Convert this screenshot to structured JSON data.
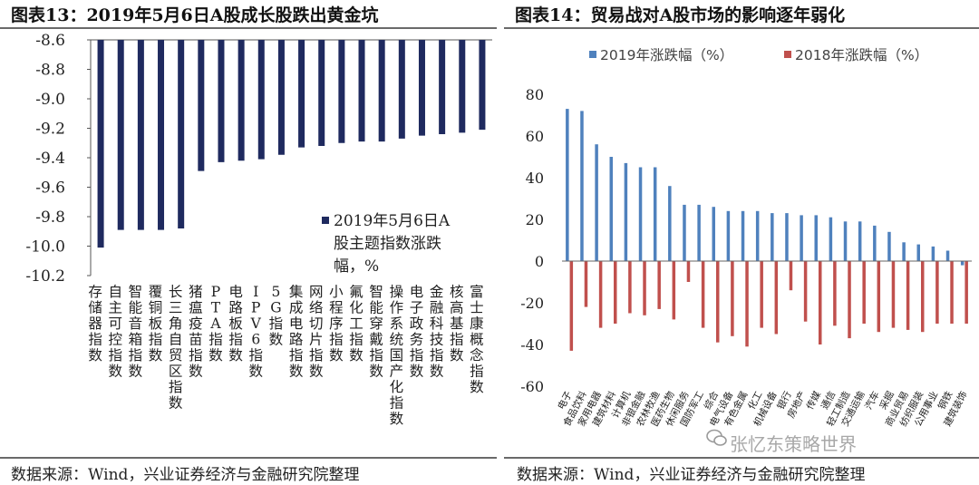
{
  "left_figure": {
    "title": "图表13：2019年5月6日A股成长股跌出黄金坑",
    "source": "数据来源：Wind，兴业证券经济与金融研究院整理"
  },
  "right_figure": {
    "title": "图表14：贸易战对A股市场的影响逐年弱化",
    "source": "数据来源：Wind，兴业证券经济与金融研究院整理"
  },
  "watermark": "张忆东策略世界",
  "colors": {
    "navy": "#1f2a5f",
    "blue": "#4f81bd",
    "red": "#c0504d",
    "rule": "#6a6a6a"
  },
  "chart_data": [
    {
      "type": "bar",
      "title": "图表13：2019年5月6日A股成长股跌出黄金坑",
      "legend": "2019年5月6日A股主题指数涨跌幅，%",
      "legend_lines": [
        "2019年5月6日A",
        "股主题指数涨跌",
        "幅，%"
      ],
      "legend_position": "middle-right",
      "categories": [
        "存储器指数",
        "自主可控指数",
        "智能音箱指数",
        "覆铜板指数",
        "长三角自贸区指数",
        "猪瘟疫苗指数",
        "PTA指数",
        "电路板指数",
        "IPV6指数",
        "5G指数",
        "集成电路指数",
        "网络切片指数",
        "小程序指数",
        "氟化工指数",
        "智能穿戴指数",
        "操作系统国产化指数",
        "电子政务指数",
        "金融科技指数",
        "核高基指数",
        "富士康概念指数"
      ],
      "values": [
        -10.01,
        -9.89,
        -9.89,
        -9.89,
        -9.88,
        -9.49,
        -9.43,
        -9.42,
        -9.41,
        -9.38,
        -9.33,
        -9.32,
        -9.3,
        -9.29,
        -9.29,
        -9.27,
        -9.25,
        -9.24,
        -9.23,
        -9.21
      ],
      "ylim": [
        -10.2,
        -8.6
      ],
      "yticks": [
        -8.6,
        -8.8,
        -9.0,
        -9.2,
        -9.4,
        -9.6,
        -9.8,
        -10.0,
        -10.2
      ],
      "ytick_labels": [
        "-8.6",
        "-8.8",
        "-9.0",
        "-9.2",
        "-9.4",
        "-9.6",
        "-9.8",
        "-10.0",
        "-10.2"
      ],
      "grid": false
    },
    {
      "type": "bar",
      "title": "图表14：贸易战对A股市场的影响逐年弱化",
      "legend_position": "top",
      "categories": [
        "电子",
        "食品饮料",
        "家用电器",
        "建筑材料",
        "计算机",
        "非银金融",
        "农林牧渔",
        "医药生物",
        "休闲服务",
        "国防军工",
        "综合",
        "电气设备",
        "有色金属",
        "化工",
        "机械设备",
        "银行",
        "房地产",
        "传媒",
        "通信",
        "轻工制造",
        "交通运输",
        "汽车",
        "采掘",
        "商业贸易",
        "纺织服装",
        "公用事业",
        "钢铁",
        "建筑装饰"
      ],
      "series": [
        {
          "name": "2019年涨跌幅（%）",
          "values": [
            73,
            72,
            56,
            50,
            47,
            45,
            45,
            36,
            27,
            27,
            26,
            24,
            24,
            24,
            23,
            23,
            22,
            22,
            21,
            19,
            19,
            17,
            14,
            9,
            8,
            7,
            5,
            -2
          ]
        },
        {
          "name": "2018年涨跌幅（%）",
          "values": [
            -43,
            -22,
            -32,
            -30,
            -25,
            -26,
            -23,
            -28,
            -10,
            -32,
            -39,
            -36,
            -41,
            -32,
            -35,
            -14,
            -29,
            -40,
            -31,
            -37,
            -30,
            -34,
            -32,
            -33,
            -34,
            -30,
            -30,
            -30
          ]
        }
      ],
      "ylim": [
        -60,
        80
      ],
      "yticks": [
        80,
        60,
        40,
        20,
        0,
        -20,
        -40,
        -60
      ],
      "ytick_labels": [
        "80",
        "60",
        "40",
        "20",
        "0",
        "-20",
        "-40",
        "-60"
      ],
      "grid": false
    }
  ]
}
